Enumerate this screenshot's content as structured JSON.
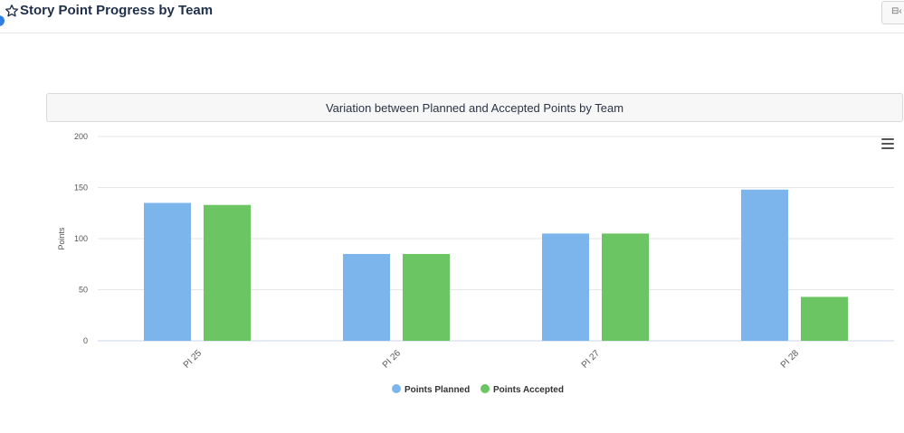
{
  "header": {
    "title": "Story Point Progress by Team",
    "star_icon": "star-outline-icon",
    "corner_button_icon": "export-icon",
    "corner_button_label": "⊟‹"
  },
  "colors": {
    "planned": "#7cb5ec",
    "accepted": "#6cc563",
    "grid": "#e6e6e6",
    "axis_text": "#555555",
    "accent": "#2f7ee0"
  },
  "chart_data": {
    "type": "bar",
    "title": "Variation between Planned and Accepted Points by Team",
    "categories": [
      "PI 25",
      "PI 26",
      "PI 27",
      "PI 28"
    ],
    "series": [
      {
        "name": "Points Planned",
        "values": [
          135,
          85,
          105,
          148
        ]
      },
      {
        "name": "Points Accepted",
        "values": [
          133,
          85,
          105,
          43
        ]
      }
    ],
    "xlabel": "",
    "ylabel": "Points",
    "ylim": [
      0,
      200
    ],
    "yticks": [
      0,
      50,
      100,
      150,
      200
    ],
    "grid": true,
    "legend": "bottom-center"
  }
}
